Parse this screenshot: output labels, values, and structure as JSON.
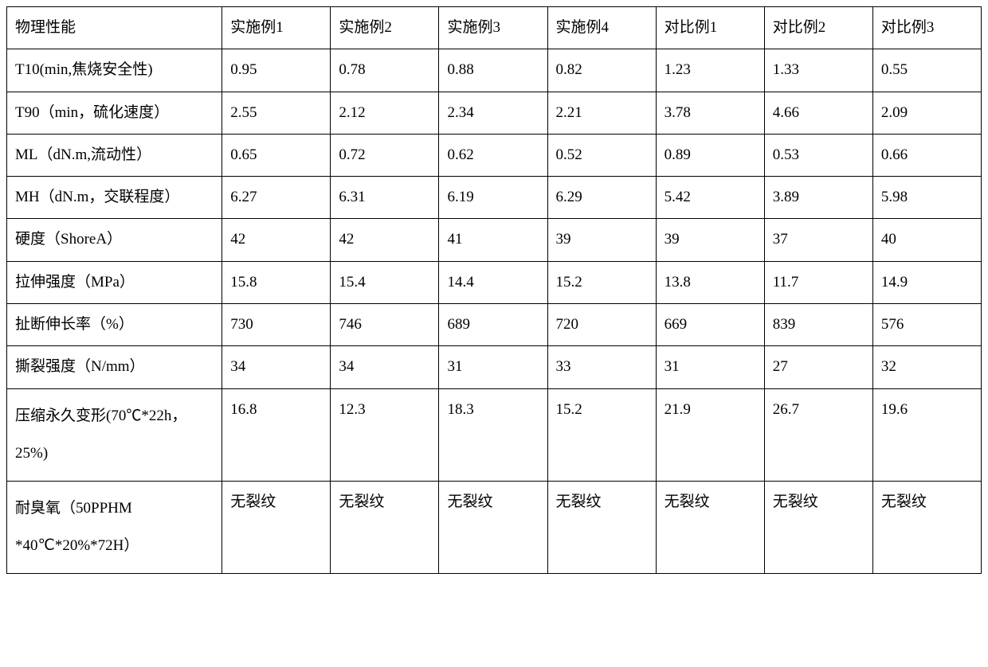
{
  "table": {
    "columns": [
      "物理性能",
      "实施例1",
      "实施例2",
      "实施例3",
      "实施例4",
      "对比例1",
      "对比例2",
      "对比例3"
    ],
    "rows": [
      {
        "label": "T10(min,焦烧安全性)",
        "values": [
          "0.95",
          "0.78",
          "0.88",
          "0.82",
          "1.23",
          "1.33",
          "0.55"
        ],
        "multiline": false
      },
      {
        "label": "T90（min，硫化速度）",
        "values": [
          "2.55",
          "2.12",
          "2.34",
          "2.21",
          "3.78",
          "4.66",
          "2.09"
        ],
        "multiline": false
      },
      {
        "label": "ML（dN.m,流动性）",
        "values": [
          "0.65",
          "0.72",
          "0.62",
          "0.52",
          "0.89",
          "0.53",
          "0.66"
        ],
        "multiline": false
      },
      {
        "label": "MH（dN.m，交联程度）",
        "values": [
          "6.27",
          "6.31",
          "6.19",
          "6.29",
          "5.42",
          "3.89",
          "5.98"
        ],
        "multiline": false
      },
      {
        "label": "硬度（ShoreA）",
        "values": [
          "42",
          "42",
          "41",
          "39",
          "39",
          "37",
          "40"
        ],
        "multiline": false
      },
      {
        "label": "拉伸强度（MPa）",
        "values": [
          "15.8",
          "15.4",
          "14.4",
          "15.2",
          "13.8",
          "11.7",
          "14.9"
        ],
        "multiline": false
      },
      {
        "label": "扯断伸长率（%）",
        "values": [
          "730",
          "746",
          "689",
          "720",
          "669",
          "839",
          "576"
        ],
        "multiline": false
      },
      {
        "label": "撕裂强度（N/mm）",
        "values": [
          "34",
          "34",
          "31",
          "33",
          "31",
          "27",
          "32"
        ],
        "multiline": false
      },
      {
        "label": "压缩永久变形(70℃*22h，25%)",
        "values": [
          "16.8",
          "12.3",
          "18.3",
          "15.2",
          "21.9",
          "26.7",
          "19.6"
        ],
        "multiline": true
      },
      {
        "label": "耐臭氧（50PPHM *40℃*20%*72H）",
        "values": [
          "无裂纹",
          "无裂纹",
          "无裂纹",
          "无裂纹",
          "无裂纹",
          "无裂纹",
          "无裂纹"
        ],
        "multiline": true
      }
    ],
    "styling": {
      "border_color": "#000000",
      "background_color": "#ffffff",
      "text_color": "#000000",
      "font_family": "SimSun",
      "font_size": 19,
      "cell_padding": 10,
      "first_col_width": 270,
      "other_col_width": 136,
      "line_height": 1.7,
      "multiline_line_height": 2.5
    }
  }
}
